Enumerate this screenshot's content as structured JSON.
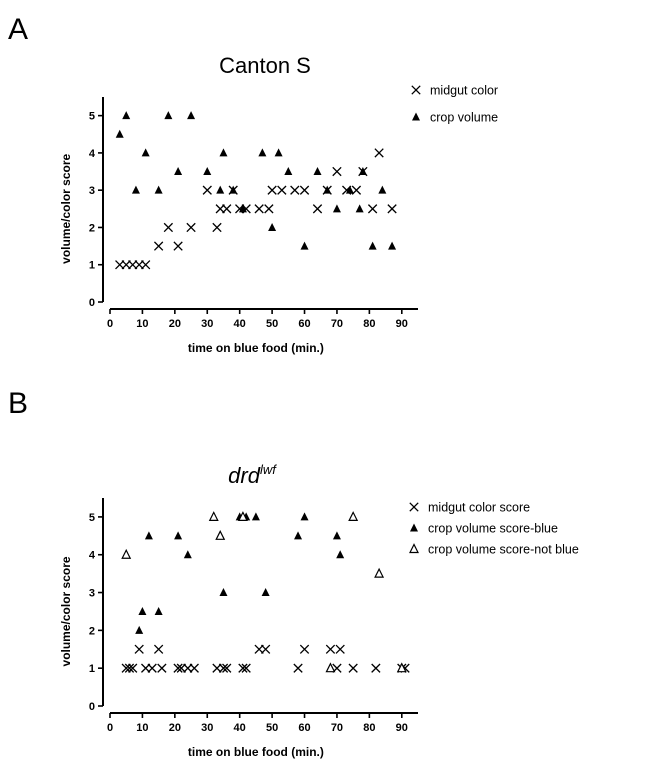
{
  "chart_data": [
    {
      "type": "scatter",
      "panel": "A",
      "title": "Canton S",
      "xlabel": "time on blue food (min.)",
      "ylabel": "volume/color score",
      "xlim": [
        0,
        95
      ],
      "ylim": [
        0,
        5.5
      ],
      "xticks": [
        0,
        10,
        20,
        30,
        40,
        50,
        60,
        70,
        80,
        90
      ],
      "yticks": [
        0,
        1,
        2,
        3,
        4,
        5
      ],
      "grid": false,
      "legend_position": "top-right",
      "series": [
        {
          "name": "midgut color",
          "marker": "x",
          "points": [
            [
              3,
              1
            ],
            [
              5,
              1
            ],
            [
              7,
              1
            ],
            [
              9,
              1
            ],
            [
              11,
              1
            ],
            [
              15,
              1.5
            ],
            [
              18,
              2
            ],
            [
              21,
              1.5
            ],
            [
              25,
              2
            ],
            [
              30,
              3
            ],
            [
              33,
              2
            ],
            [
              34,
              2.5
            ],
            [
              36,
              2.5
            ],
            [
              38,
              3
            ],
            [
              40,
              2.5
            ],
            [
              42,
              2.5
            ],
            [
              46,
              2.5
            ],
            [
              49,
              2.5
            ],
            [
              50,
              3
            ],
            [
              53,
              3
            ],
            [
              57,
              3
            ],
            [
              60,
              3
            ],
            [
              64,
              2.5
            ],
            [
              67,
              3
            ],
            [
              70,
              3.5
            ],
            [
              73,
              3
            ],
            [
              76,
              3
            ],
            [
              78,
              3.5
            ],
            [
              81,
              2.5
            ],
            [
              83,
              4
            ],
            [
              87,
              2.5
            ]
          ]
        },
        {
          "name": "crop volume",
          "marker": "triangle-filled",
          "points": [
            [
              3,
              4.5
            ],
            [
              5,
              5
            ],
            [
              8,
              3
            ],
            [
              11,
              4
            ],
            [
              15,
              3
            ],
            [
              18,
              5
            ],
            [
              21,
              3.5
            ],
            [
              25,
              5
            ],
            [
              30,
              3.5
            ],
            [
              34,
              3
            ],
            [
              35,
              4
            ],
            [
              38,
              3
            ],
            [
              41,
              2.5
            ],
            [
              47,
              4
            ],
            [
              50,
              2
            ],
            [
              52,
              4
            ],
            [
              55,
              3.5
            ],
            [
              60,
              1.5
            ],
            [
              64,
              3.5
            ],
            [
              67,
              3
            ],
            [
              70,
              2.5
            ],
            [
              74,
              3
            ],
            [
              77,
              2.5
            ],
            [
              78,
              3.5
            ],
            [
              81,
              1.5
            ],
            [
              84,
              3
            ],
            [
              87,
              1.5
            ]
          ]
        }
      ]
    },
    {
      "type": "scatter",
      "panel": "B",
      "title": "drd",
      "title_superscript": "lwf",
      "xlabel": "time on blue food (min.)",
      "ylabel": "volume/color score",
      "xlim": [
        0,
        95
      ],
      "ylim": [
        0,
        5.5
      ],
      "xticks": [
        0,
        10,
        20,
        30,
        40,
        50,
        60,
        70,
        80,
        90
      ],
      "yticks": [
        0,
        1,
        2,
        3,
        4,
        5
      ],
      "grid": false,
      "legend_position": "top-right",
      "series": [
        {
          "name": "midgut color score",
          "marker": "x",
          "points": [
            [
              5,
              1
            ],
            [
              6,
              1
            ],
            [
              7,
              1
            ],
            [
              9,
              1.5
            ],
            [
              11,
              1
            ],
            [
              13,
              1
            ],
            [
              15,
              1.5
            ],
            [
              16,
              1
            ],
            [
              21,
              1
            ],
            [
              22,
              1
            ],
            [
              24,
              1
            ],
            [
              26,
              1
            ],
            [
              33,
              1
            ],
            [
              35,
              1
            ],
            [
              36,
              1
            ],
            [
              41,
              1
            ],
            [
              42,
              1
            ],
            [
              46,
              1.5
            ],
            [
              48,
              1.5
            ],
            [
              58,
              1
            ],
            [
              60,
              1.5
            ],
            [
              68,
              1.5
            ],
            [
              70,
              1
            ],
            [
              71,
              1.5
            ],
            [
              75,
              1
            ],
            [
              82,
              1
            ],
            [
              90,
              1
            ],
            [
              91,
              1
            ]
          ]
        },
        {
          "name": "crop volume score-blue",
          "marker": "triangle-filled",
          "points": [
            [
              9,
              2
            ],
            [
              10,
              2.5
            ],
            [
              12,
              4.5
            ],
            [
              15,
              2.5
            ],
            [
              21,
              4.5
            ],
            [
              24,
              4
            ],
            [
              35,
              3
            ],
            [
              40,
              5
            ],
            [
              42,
              5
            ],
            [
              45,
              5
            ],
            [
              48,
              3
            ],
            [
              58,
              4.5
            ],
            [
              60,
              5
            ],
            [
              70,
              4.5
            ],
            [
              71,
              4
            ]
          ]
        },
        {
          "name": "crop volume score-not blue",
          "marker": "triangle-open",
          "points": [
            [
              5,
              4
            ],
            [
              32,
              5
            ],
            [
              34,
              4.5
            ],
            [
              41,
              5
            ],
            [
              68,
              1
            ],
            [
              75,
              5
            ],
            [
              83,
              3.5
            ],
            [
              90,
              1
            ]
          ]
        }
      ]
    }
  ]
}
